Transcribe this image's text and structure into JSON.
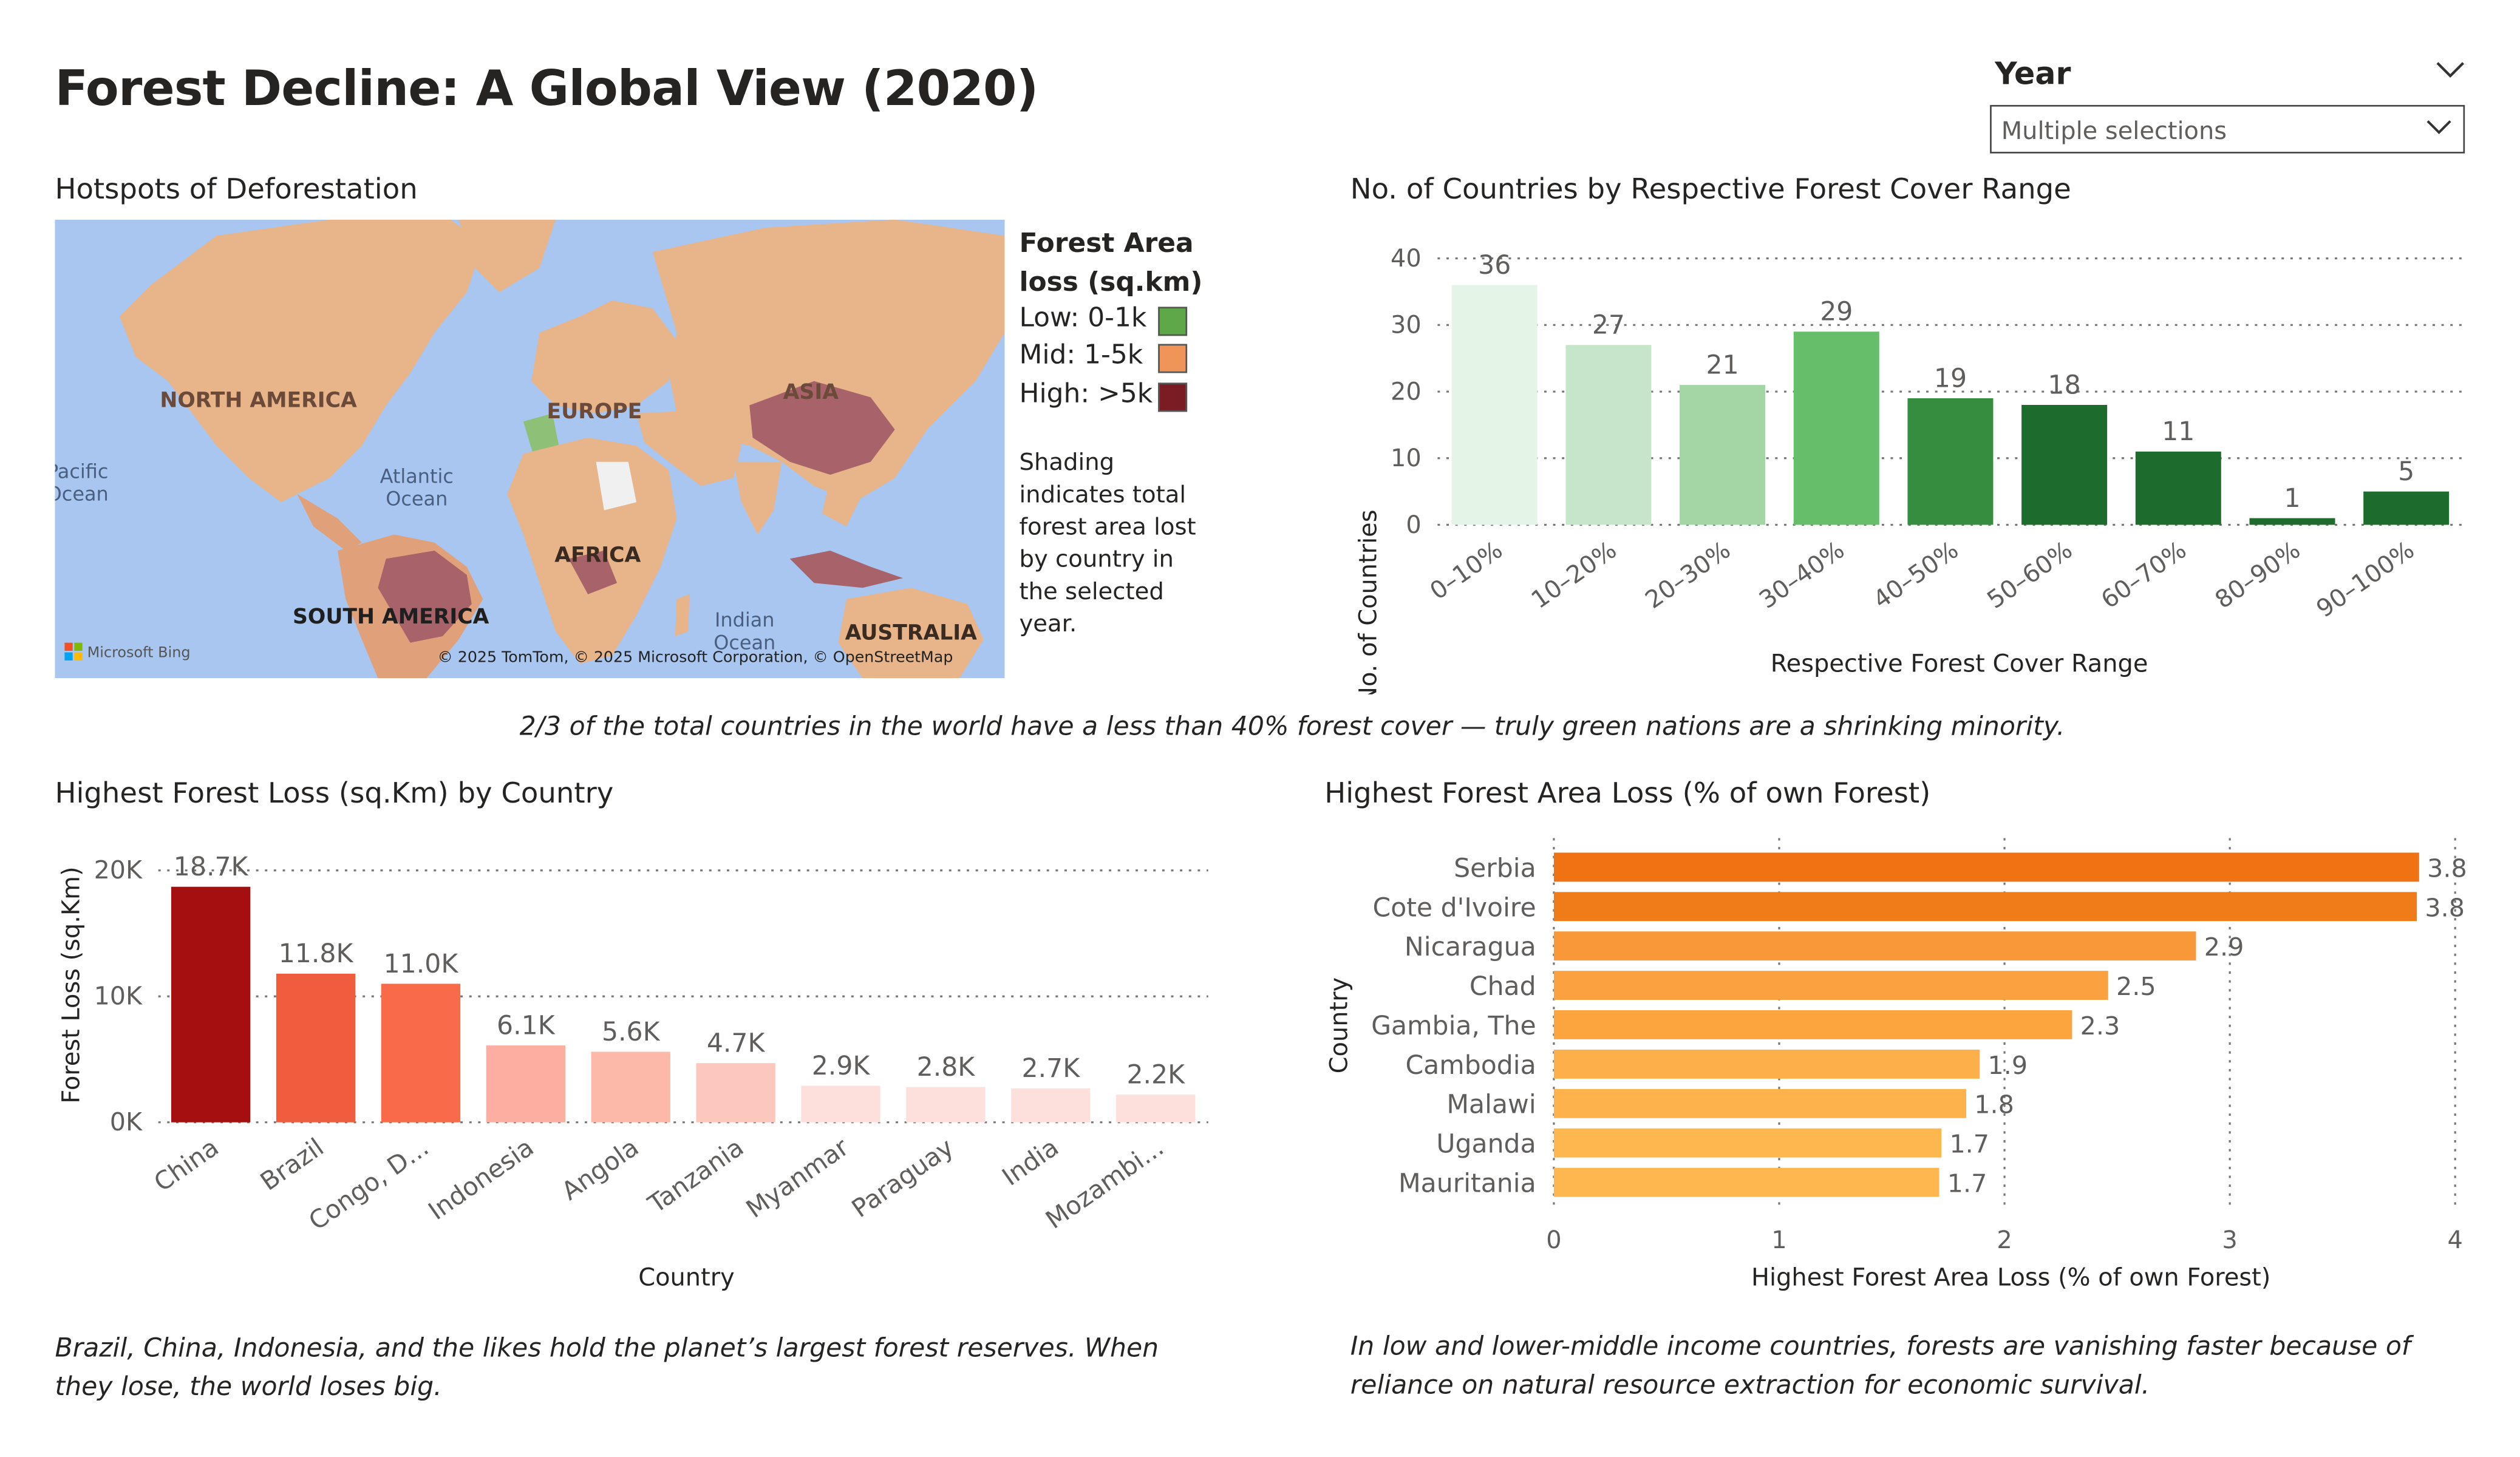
{
  "header": {
    "title": "Forest Decline: A Global View (2020)"
  },
  "slicer": {
    "title": "Year",
    "value": "Multiple selections"
  },
  "map": {
    "title": "Hotspots of Deforestation",
    "legend_title": "Forest Area loss (sq.km)",
    "legend": [
      {
        "label": "Low: 0-1k",
        "color": "#5fa84a"
      },
      {
        "label": "Mid: 1-5k",
        "color": "#f0955a"
      },
      {
        "label": "High: >5k",
        "color": "#7b1c24"
      }
    ],
    "note": "Shading indicates total forest area lost by country in the selected year.",
    "region_labels": {
      "north_america": "NORTH AMERICA",
      "europe": "EUROPE",
      "asia": "ASIA",
      "africa": "AFRICA",
      "south_america": "SOUTH AMERICA",
      "australia": "AUSTRALIA",
      "pacific_line1": "Pacific",
      "pacific_line2": "Ocean",
      "atlantic_line1": "Atlantic",
      "atlantic_line2": "Ocean",
      "indian_line1": "Indian",
      "indian_line2": "Ocean"
    },
    "attribution_left": "Microsoft Bing",
    "attribution_right": "© 2025 TomTom, © 2025 Microsoft Corporation, © OpenStreetMap",
    "colors": {
      "ocean": "#a8c6f0",
      "land": "#e8b48a",
      "land_mid": "#e0a07a",
      "high": "#a7626a",
      "low": "#8fc078",
      "gray": "#f0f0f0"
    }
  },
  "insights": {
    "top": "2/3 of the total countries in the world have a less than 40% forest cover — truly green nations are a shrinking minority.",
    "bottom_left": "Brazil, China, Indonesia, and the likes hold the planet’s largest forest reserves. When they lose, the world loses big.",
    "bottom_right": "In low and lower-middle income countries, forests are vanishing faster because of reliance on natural resource extraction for economic survival."
  },
  "chart_data": [
    {
      "id": "cover",
      "type": "bar",
      "title": "No. of Countries by Respective Forest Cover Range",
      "xlabel": "Respective Forest Cover Range",
      "ylabel": "No. of Countries",
      "categories": [
        "0–10%",
        "10–20%",
        "20–30%",
        "30–40%",
        "40–50%",
        "50–60%",
        "60–70%",
        "80–90%",
        "90–100%"
      ],
      "values": [
        36,
        27,
        21,
        29,
        19,
        18,
        11,
        1,
        5
      ],
      "labels": [
        "36",
        "27",
        "21",
        "29",
        "19",
        "18",
        "11",
        "1",
        "5"
      ],
      "colors": [
        "#e4f4e7",
        "#c6e6cc",
        "#a3d6a4",
        "#66bd6a",
        "#368d3f",
        "#1d6b2d",
        "#1d6b2d",
        "#1d6b2d",
        "#1d6b2d"
      ],
      "yticks": [
        0,
        10,
        20,
        30,
        40
      ],
      "ytick_labels": [
        "0",
        "10",
        "20",
        "30",
        "40"
      ],
      "ylim": [
        0,
        40
      ],
      "grid": true
    },
    {
      "id": "loss",
      "type": "bar",
      "title": "Highest Forest Loss (sq.Km) by Country",
      "xlabel": "Country",
      "ylabel": "Forest Loss (sq.Km)",
      "categories": [
        "China",
        "Brazil",
        "Congo, D...",
        "Indonesia",
        "Angola",
        "Tanzania",
        "Myanmar",
        "Paraguay",
        "India",
        "Mozambi..."
      ],
      "values": [
        18700,
        11800,
        11000,
        6100,
        5600,
        4700,
        2900,
        2800,
        2700,
        2200
      ],
      "labels": [
        "18.7K",
        "11.8K",
        "11.0K",
        "6.1K",
        "5.6K",
        "4.7K",
        "2.9K",
        "2.8K",
        "2.7K",
        "2.2K"
      ],
      "colors": [
        "#a50f0f",
        "#f05c3e",
        "#f86a48",
        "#fcaea0",
        "#fcb8a8",
        "#fcc8bd",
        "#fde0dc",
        "#fde0dc",
        "#fde0dc",
        "#fde0dc"
      ],
      "yticks": [
        0,
        10000,
        20000
      ],
      "ytick_labels": [
        "0K",
        "10K",
        "20K"
      ],
      "ylim": [
        0,
        20000
      ],
      "grid": true
    },
    {
      "id": "pct",
      "type": "bar",
      "orientation": "horizontal",
      "title": "Highest Forest Area Loss (% of own Forest)",
      "xlabel": "Highest Forest Area Loss (% of own Forest)",
      "ylabel": "Country",
      "categories": [
        "Serbia",
        "Cote d'Ivoire",
        "Nicaragua",
        "Chad",
        "Gambia, The",
        "Cambodia",
        "Malawi",
        "Uganda",
        "Mauritania"
      ],
      "values": [
        3.84,
        3.83,
        2.85,
        2.46,
        2.3,
        1.89,
        1.83,
        1.72,
        1.71
      ],
      "labels": [
        "3.8",
        "3.8",
        "2.9",
        "2.5",
        "2.3",
        "1.9",
        "1.8",
        "1.7",
        "1.7"
      ],
      "colors": [
        "#f07213",
        "#f07b19",
        "#f99838",
        "#fba13f",
        "#fca53f",
        "#fdb04a",
        "#fdb24c",
        "#feb64f",
        "#feb64f"
      ],
      "xticks": [
        0,
        1,
        2,
        3,
        4
      ],
      "xtick_labels": [
        "0",
        "1",
        "2",
        "3",
        "4"
      ],
      "xlim": [
        0,
        4
      ],
      "grid": true
    }
  ]
}
